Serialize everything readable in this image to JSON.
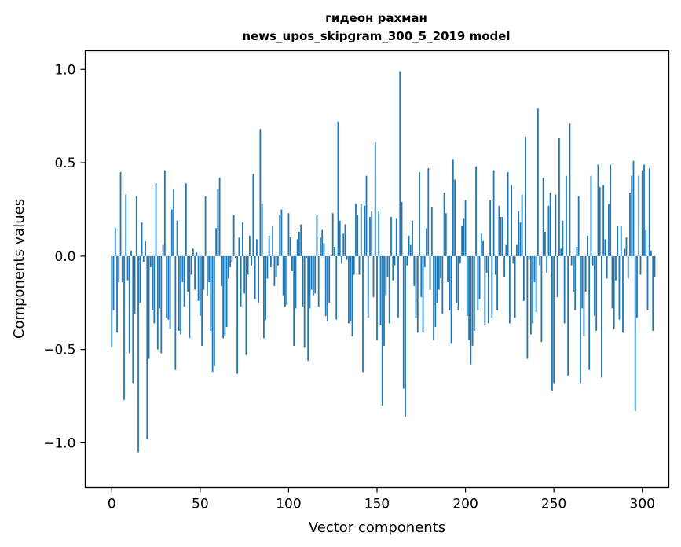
{
  "chart_data": {
    "type": "bar",
    "title": "гидеон рахман",
    "subtitle": "news_upos_skipgram_300_5_2019 model",
    "xlabel": "Vector components",
    "ylabel": "Components values",
    "xlim": [
      -15,
      315
    ],
    "ylim": [
      -1.24,
      1.1
    ],
    "xticks": [
      0,
      50,
      100,
      150,
      200,
      250,
      300
    ],
    "yticks": [
      -1.0,
      -0.5,
      0.0,
      0.5,
      1.0
    ],
    "xtick_labels": [
      "0",
      "50",
      "100",
      "150",
      "200",
      "250",
      "300"
    ],
    "ytick_labels": [
      "−1.0",
      "−0.5",
      "0.0",
      "0.5",
      "1.0"
    ],
    "grid": false,
    "bar_color": "#1f77b4",
    "x_start": 0,
    "values": [
      -0.49,
      -0.29,
      0.15,
      -0.41,
      -0.14,
      0.45,
      -0.14,
      -0.77,
      0.33,
      -0.13,
      -0.52,
      0.03,
      -0.68,
      -0.31,
      0.32,
      -1.05,
      -0.25,
      0.18,
      -0.03,
      0.08,
      -0.98,
      -0.55,
      -0.06,
      -0.29,
      -0.36,
      0.39,
      -0.5,
      -0.28,
      -0.52,
      0.06,
      0.46,
      -0.33,
      -0.34,
      -0.39,
      0.25,
      0.36,
      -0.61,
      0.19,
      -0.4,
      -0.42,
      -0.14,
      -0.27,
      0.39,
      -0.19,
      -0.44,
      -0.1,
      0.04,
      -0.18,
      0.02,
      -0.24,
      -0.32,
      -0.48,
      -0.18,
      0.32,
      -0.21,
      -0.14,
      -0.4,
      -0.62,
      -0.59,
      0.15,
      0.36,
      0.42,
      -0.16,
      -0.44,
      -0.43,
      -0.38,
      -0.12,
      -0.06,
      -0.03,
      0.22,
      -0.01,
      -0.63,
      0.1,
      -0.27,
      0.18,
      -0.2,
      -0.53,
      -0.1,
      0.11,
      -0.05,
      0.44,
      -0.23,
      0.09,
      -0.25,
      0.68,
      0.28,
      -0.44,
      -0.34,
      -0.12,
      0.11,
      -0.06,
      0.16,
      -0.16,
      -0.11,
      -0.05,
      0.22,
      0.25,
      -0.21,
      -0.27,
      -0.26,
      0.23,
      0.1,
      -0.08,
      -0.48,
      -0.28,
      0.09,
      0.13,
      0.17,
      -0.27,
      -0.49,
      -0.01,
      -0.56,
      -0.28,
      -0.18,
      -0.21,
      -0.2,
      0.22,
      -0.27,
      0.1,
      0.14,
      0.07,
      -0.32,
      -0.35,
      -0.25,
      0.01,
      0.23,
      0.05,
      -0.34,
      0.72,
      0.19,
      -0.04,
      0.12,
      0.17,
      -0.02,
      -0.36,
      -0.35,
      -0.43,
      -0.1,
      0.28,
      0.22,
      -0.1,
      0.28,
      -0.62,
      0.27,
      0.43,
      -0.33,
      0.21,
      0.24,
      -0.22,
      0.61,
      -0.45,
      0.24,
      -0.37,
      -0.8,
      -0.48,
      -0.21,
      -0.11,
      -0.36,
      0.21,
      -0.13,
      -0.05,
      0.2,
      -0.33,
      0.99,
      0.29,
      -0.71,
      -0.86,
      -0.05,
      0.11,
      0.06,
      0.19,
      -0.16,
      -0.33,
      -0.41,
      0.45,
      -0.22,
      -0.41,
      -0.06,
      0.15,
      0.47,
      -0.18,
      0.26,
      -0.45,
      -0.38,
      -0.25,
      -0.18,
      -0.12,
      -0.31,
      0.34,
      0.23,
      -0.14,
      -0.29,
      -0.47,
      0.52,
      0.41,
      -0.25,
      -0.29,
      -0.04,
      0.16,
      0.2,
      0.3,
      -0.32,
      -0.45,
      -0.58,
      -0.48,
      -0.4,
      0.48,
      -0.29,
      -0.23,
      0.12,
      0.08,
      -0.37,
      -0.09,
      -0.36,
      0.3,
      -0.33,
      0.46,
      -0.1,
      -0.29,
      0.27,
      0.21,
      0.21,
      -0.11,
      0.06,
      0.45,
      -0.36,
      0.38,
      -0.04,
      -0.33,
      0.06,
      0.24,
      0.18,
      0.33,
      -0.24,
      0.64,
      -0.55,
      -0.02,
      -0.42,
      -0.36,
      -0.14,
      -0.3,
      0.79,
      -0.05,
      -0.46,
      0.42,
      0.13,
      -0.09,
      0.27,
      0.34,
      -0.72,
      -0.68,
      0.33,
      -0.22,
      0.63,
      0.04,
      0.19,
      -0.36,
      0.43,
      -0.64,
      0.71,
      -0.05,
      -0.19,
      -0.29,
      0.05,
      0.32,
      -0.68,
      -0.28,
      -0.43,
      -0.19,
      0.11,
      -0.61,
      0.43,
      -0.05,
      -0.32,
      -0.4,
      0.49,
      0.37,
      -0.65,
      0.38,
      0.09,
      -0.12,
      0.28,
      0.49,
      -0.28,
      -0.39,
      -0.13,
      0.16,
      -0.34,
      0.16,
      -0.41,
      0.04,
      0.1,
      -0.12,
      0.34,
      0.43,
      0.51,
      -0.83,
      -0.33,
      0.43,
      -0.1,
      0.46,
      0.49,
      0.14,
      -0.29,
      0.47,
      0.03,
      -0.4,
      -0.11
    ]
  }
}
